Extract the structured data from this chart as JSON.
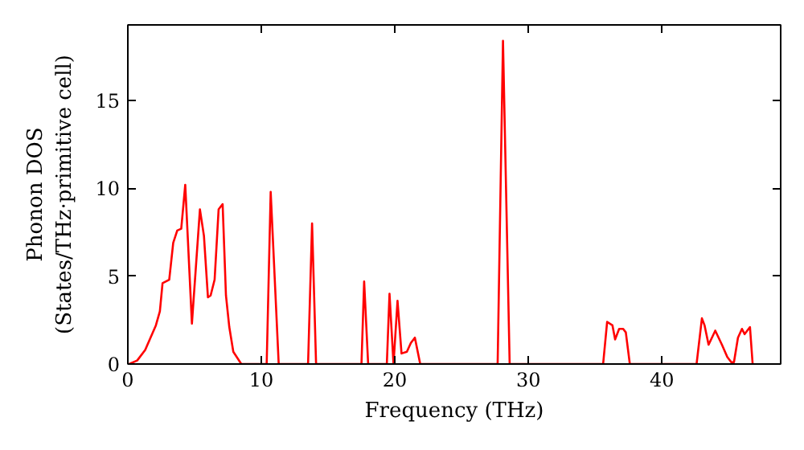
{
  "chart_data": {
    "type": "line",
    "xlabel": "Frequency (THz)",
    "ylabel": "Phonon DOS\n(States/THz·primitive cell)",
    "xlim": [
      0,
      48.9
    ],
    "ylim": [
      0,
      19.3
    ],
    "xticks": [
      0,
      10,
      20,
      30,
      40
    ],
    "yticks": [
      0,
      5,
      10,
      15
    ],
    "line_style": "solid",
    "series": [
      {
        "color": "#ff0000",
        "x": [
          0.1,
          0.7,
          1.3,
          1.7,
          2.1,
          2.4,
          2.6,
          3.1,
          3.4,
          3.7,
          4.0,
          4.3,
          4.8,
          5.4,
          5.7,
          6.0,
          6.2,
          6.5,
          6.8,
          7.1,
          7.35,
          7.6,
          7.9,
          8.5,
          10.4,
          10.7,
          11.3,
          13.5,
          13.8,
          14.1,
          17.5,
          17.7,
          18.0,
          19.4,
          19.6,
          19.9,
          20.2,
          20.5,
          20.9,
          21.2,
          21.5,
          21.9,
          27.7,
          28.1,
          28.6,
          35.6,
          35.9,
          36.3,
          36.5,
          36.8,
          37.1,
          37.3,
          37.6,
          42.6,
          43.0,
          43.2,
          43.5,
          44.0,
          44.5,
          44.9,
          45.2,
          45.4,
          45.7,
          46.0,
          46.2,
          46.6,
          46.8
        ],
        "values": [
          0,
          0.2,
          0.8,
          1.5,
          2.2,
          3.0,
          4.6,
          4.8,
          6.9,
          7.6,
          7.7,
          10.2,
          2.3,
          8.8,
          7.3,
          3.8,
          3.9,
          4.8,
          8.8,
          9.1,
          3.9,
          2.1,
          0.7,
          0,
          0,
          9.8,
          0,
          0,
          8.0,
          0,
          0,
          4.7,
          0,
          0,
          4.0,
          0,
          3.6,
          0.6,
          0.7,
          1.2,
          1.5,
          0,
          0,
          18.4,
          0,
          0,
          2.4,
          2.2,
          1.4,
          2.0,
          2.0,
          1.8,
          0,
          0,
          2.6,
          2.2,
          1.1,
          1.9,
          1.1,
          0.4,
          0.1,
          0.1,
          1.5,
          2.0,
          1.7,
          2.1,
          0
        ]
      }
    ]
  }
}
